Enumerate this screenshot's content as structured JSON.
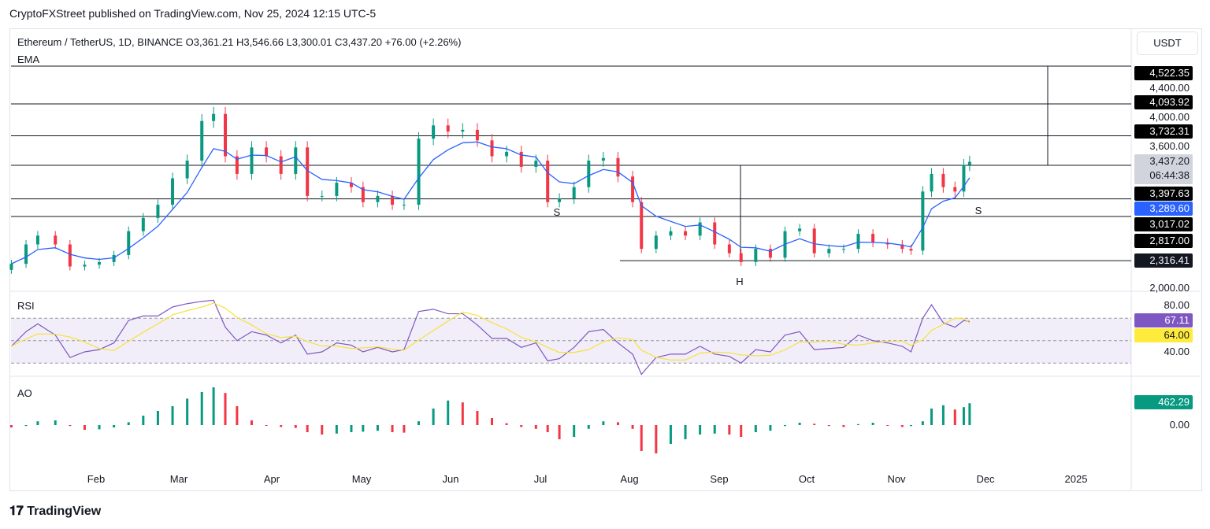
{
  "publisher": "CryptoFXStreet published on TradingView.com, Nov 25, 2024 12:15 UTC-5",
  "legend": "Ethereum / TetherUS, 1D, BINANCE  O3,361.21  H3,546.66  L3,300.01  C3,437.20  +76.00 (+2.26%)",
  "indicator_ema": "EMA",
  "indicator_rsi": "RSI",
  "indicator_ao": "AO",
  "currency": "USDT",
  "footer": "TradingView",
  "price_axis": [
    "4,400.00",
    "4,000.00",
    "3,600.00",
    "2,000.00"
  ],
  "price_labels": [
    {
      "text": "4,522.35",
      "value": 4522.35,
      "bg": "#000000",
      "fg": "#ffffff"
    },
    {
      "text": "4,093.92",
      "value": 4093.92,
      "bg": "#000000",
      "fg": "#ffffff"
    },
    {
      "text": "3,732.31",
      "value": 3732.31,
      "bg": "#000000",
      "fg": "#ffffff"
    },
    {
      "text": "3,437.20",
      "value": 3437.2,
      "bg": "#d1d4dc",
      "fg": "#131722",
      "sub": "06:44:38"
    },
    {
      "text": "3,397.63",
      "value": 3397.63,
      "bg": "#000000",
      "fg": "#ffffff"
    },
    {
      "text": "3,289.60",
      "value": 3289.6,
      "bg": "#2962ff",
      "fg": "#ffffff"
    },
    {
      "text": "3,017.02",
      "value": 3017.02,
      "bg": "#000000",
      "fg": "#ffffff"
    },
    {
      "text": "2,817.00",
      "value": 2817.0,
      "bg": "#000000",
      "fg": "#ffffff"
    },
    {
      "text": "2,316.41",
      "value": 2316.41,
      "bg": "#131722",
      "fg": "#ffffff"
    }
  ],
  "rsi_axis": [
    "80.00",
    "40.00"
  ],
  "rsi_labels": [
    {
      "text": "67.11",
      "bg": "#7e57c2",
      "fg": "#ffffff"
    },
    {
      "text": "64.00",
      "bg": "#ffeb3b",
      "fg": "#131722"
    }
  ],
  "ao_axis": "0.00",
  "ao_label": {
    "text": "462.29",
    "bg": "#089981",
    "fg": "#ffffff"
  },
  "pattern_labels": {
    "s_left": "S",
    "head": "H",
    "s_right": "S"
  },
  "time_ticks": [
    "Feb",
    "Mar",
    "Apr",
    "May",
    "Jun",
    "Jul",
    "Aug",
    "Sep",
    "Oct",
    "Nov",
    "Dec",
    "2025"
  ],
  "colors": {
    "up": "#089981",
    "down": "#f23645",
    "ema": "#2962ff",
    "rsi": "#7e57c2",
    "rsi_ma": "#ffeb3b"
  },
  "chart_data": {
    "type": "candlestick",
    "levels": [
      4522.35,
      4093.92,
      3732.31,
      3397.63,
      3017.02,
      2817.0,
      2316.41
    ],
    "dates": [
      "01-03",
      "01-08",
      "01-12",
      "01-18",
      "01-23",
      "01-28",
      "02-02",
      "02-07",
      "02-12",
      "02-17",
      "02-22",
      "02-27",
      "03-03",
      "03-08",
      "03-12",
      "03-16",
      "03-20",
      "03-25",
      "03-30",
      "04-04",
      "04-09",
      "04-13",
      "04-18",
      "04-23",
      "04-28",
      "05-02",
      "05-07",
      "05-12",
      "05-16",
      "05-21",
      "05-26",
      "05-31",
      "06-05",
      "06-10",
      "06-15",
      "06-20",
      "06-25",
      "06-30",
      "07-04",
      "07-08",
      "07-13",
      "07-18",
      "07-23",
      "07-28",
      "08-02",
      "08-05",
      "08-10",
      "08-15",
      "08-20",
      "08-25",
      "08-30",
      "09-04",
      "09-08",
      "09-13",
      "09-18",
      "09-23",
      "09-28",
      "10-03",
      "10-08",
      "10-13",
      "10-18",
      "10-23",
      "10-28",
      "11-02",
      "11-05",
      "11-09",
      "11-12",
      "11-16",
      "11-20",
      "11-23",
      "11-25"
    ],
    "close": [
      2280,
      2500,
      2600,
      2500,
      2250,
      2270,
      2300,
      2380,
      2650,
      2800,
      2950,
      3250,
      3450,
      3900,
      3980,
      3500,
      3300,
      3600,
      3500,
      3300,
      3600,
      3050,
      3050,
      3200,
      3150,
      2980,
      3050,
      2950,
      2950,
      3700,
      3850,
      3780,
      3800,
      3680,
      3500,
      3550,
      3380,
      3450,
      2980,
      3020,
      3150,
      3450,
      3480,
      3270,
      2980,
      2450,
      2600,
      2650,
      2600,
      2750,
      2500,
      2400,
      2300,
      2450,
      2350,
      2650,
      2680,
      2400,
      2450,
      2450,
      2620,
      2520,
      2500,
      2450,
      2430,
      3100,
      3300,
      3150,
      3100,
      3400,
      3437.2
    ],
    "rsi": [
      45,
      58,
      65,
      55,
      35,
      40,
      42,
      48,
      68,
      72,
      72,
      80,
      83,
      85,
      86,
      62,
      50,
      58,
      55,
      48,
      55,
      38,
      40,
      48,
      46,
      40,
      44,
      40,
      42,
      76,
      78,
      74,
      74,
      64,
      52,
      52,
      44,
      48,
      32,
      34,
      44,
      58,
      60,
      48,
      38,
      20,
      35,
      38,
      38,
      45,
      38,
      36,
      30,
      42,
      40,
      55,
      58,
      42,
      43,
      44,
      55,
      50,
      48,
      45,
      40,
      70,
      82,
      66,
      62,
      68,
      67.11
    ],
    "ao": [
      -50,
      -20,
      80,
      100,
      -20,
      -100,
      -90,
      -50,
      60,
      200,
      300,
      400,
      560,
      700,
      800,
      680,
      400,
      100,
      0,
      -40,
      -60,
      -150,
      -200,
      -180,
      -150,
      -140,
      -120,
      -150,
      -160,
      80,
      350,
      520,
      480,
      300,
      150,
      40,
      -40,
      -80,
      -150,
      -300,
      -250,
      -80,
      80,
      60,
      -80,
      -550,
      -600,
      -400,
      -300,
      -200,
      -180,
      -200,
      -250,
      -150,
      -120,
      -20,
      50,
      30,
      -20,
      -40,
      20,
      50,
      -10,
      -40,
      -20,
      80,
      350,
      420,
      330,
      380,
      462.29
    ]
  }
}
